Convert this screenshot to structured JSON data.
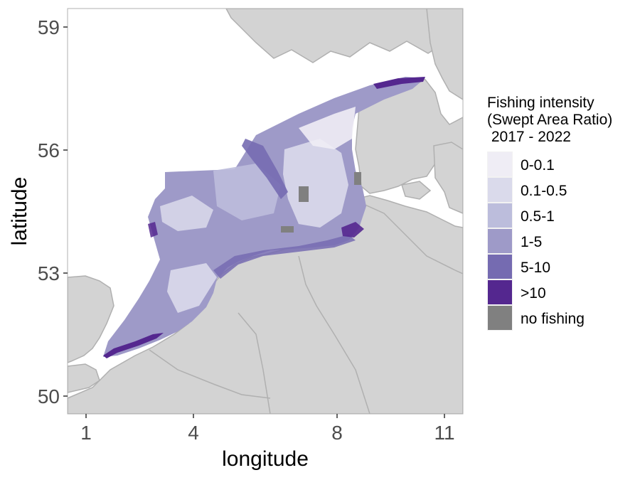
{
  "map": {
    "xlabel": "longitude",
    "ylabel": "latitude",
    "x_ticks": [
      "1",
      "4",
      "8",
      "11"
    ],
    "y_ticks": [
      "59",
      "56",
      "53",
      "50"
    ],
    "land_color": "#d3d3d3",
    "sea_color": "#ffffff"
  },
  "legend": {
    "title_lines": [
      "Fishing intensity",
      "(Swept Area Ratio)",
      " 2017 - 2022"
    ],
    "items": [
      {
        "label": "0-0.1",
        "color": "#efedf5"
      },
      {
        "label": "0.1-0.5",
        "color": "#dadaeb"
      },
      {
        "label": "0.5-1",
        "color": "#bcbddc"
      },
      {
        "label": "1-5",
        "color": "#9e9ac8"
      },
      {
        "label": "5-10",
        "color": "#756bb1"
      },
      {
        "label": ">10",
        "color": "#54278f"
      },
      {
        "label": "no fishing",
        "color": "#808080"
      }
    ]
  }
}
